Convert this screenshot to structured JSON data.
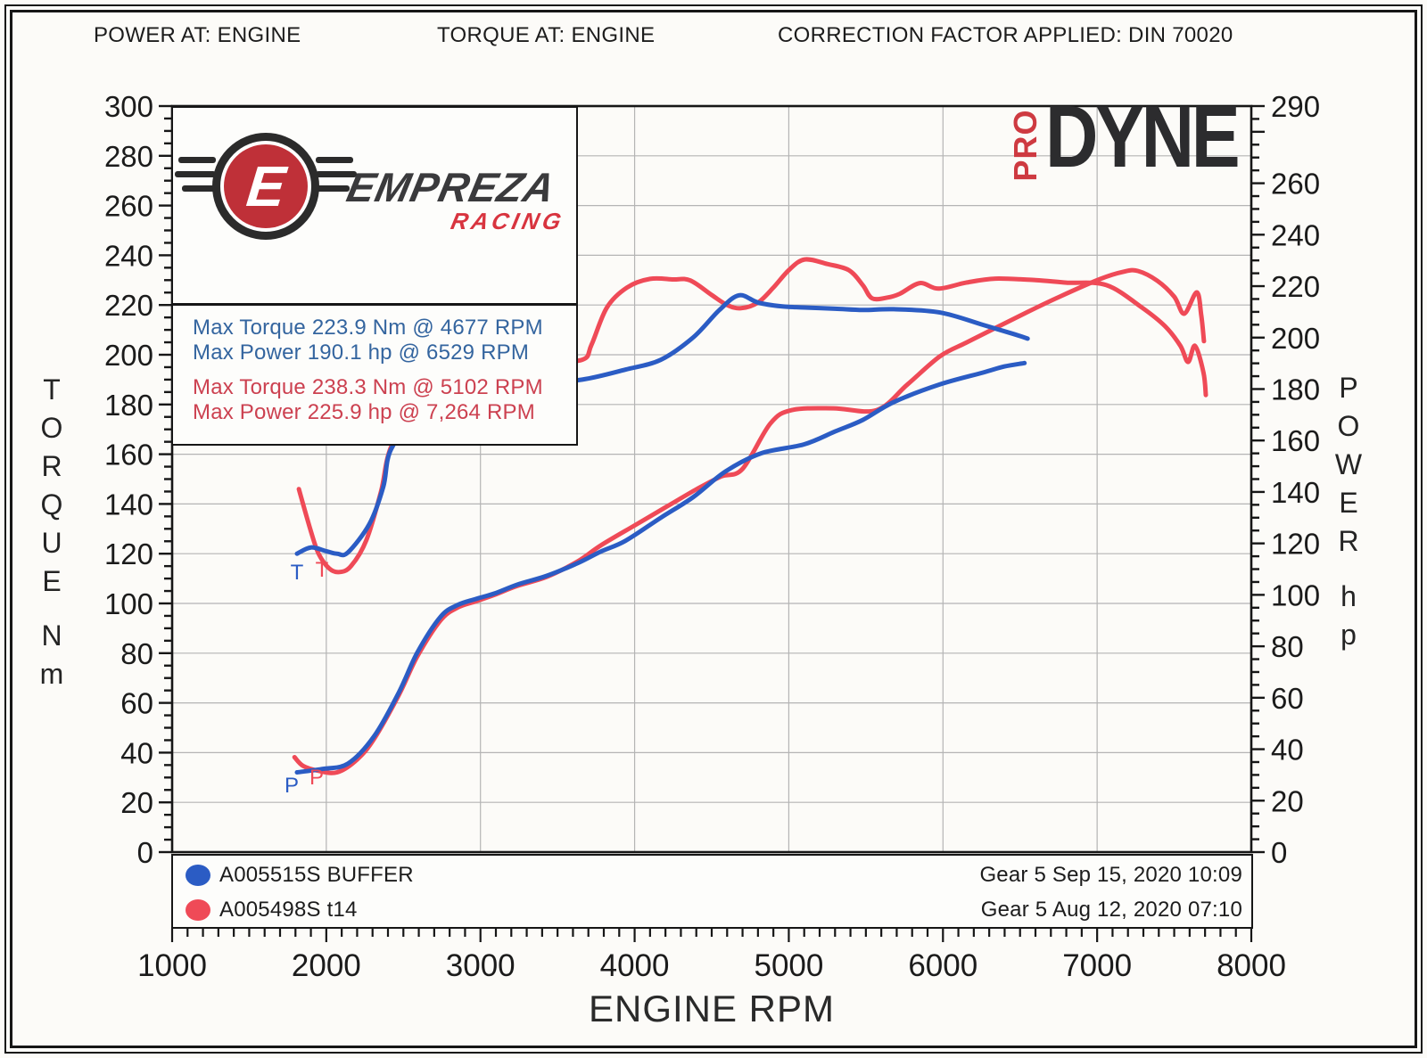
{
  "header": {
    "power_at": "POWER AT: ENGINE",
    "torque_at": "TORQUE AT: ENGINE",
    "correction": "CORRECTION FACTOR APPLIED: DIN 70020"
  },
  "watermark": {
    "pro": "PRO",
    "dyne": "DYNE"
  },
  "logo": {
    "emblem_letter": "E",
    "brand": "EMPREZA",
    "brand_sub": "RACING"
  },
  "stats": {
    "run1_max_torque": "Max Torque 223.9 Nm @ 4677 RPM",
    "run1_max_power": "Max Power 190.1 hp @ 6529 RPM",
    "run2_max_torque": "Max Torque 238.3 Nm @ 5102 RPM",
    "run2_max_power": "Max Power 225.9 hp @ 7,264 RPM"
  },
  "axes": {
    "left_title": "TORQUE",
    "left_unit": "Nm",
    "right_title": "POWER",
    "right_unit": "hp",
    "x_title": "ENGINE RPM"
  },
  "legend": {
    "rows": [
      {
        "color": "#2b5cc4",
        "label": "A005515S BUFFER",
        "right": "Gear 5 Sep 15, 2020 10:09"
      },
      {
        "color": "#ef4a57",
        "label": "A005498S t14",
        "right": "Gear 5 Aug 12, 2020 07:10"
      }
    ]
  },
  "colors": {
    "blue": "#2b5cc4",
    "red": "#ef4a57",
    "grid": "#b4b4b4",
    "axis": "#161616",
    "tick_text": "#1b1b1b"
  },
  "markers": [
    {
      "text": "T",
      "color": "#2b5cc4",
      "x": 333,
      "y": 650
    },
    {
      "text": "T",
      "color": "#ef4a57",
      "x": 361,
      "y": 647
    },
    {
      "text": "P",
      "color": "#2b5cc4",
      "x": 327,
      "y": 889
    },
    {
      "text": "P",
      "color": "#ef4a57",
      "x": 355,
      "y": 880
    }
  ],
  "chart_data": {
    "type": "line",
    "title": "Dyno run comparison - torque and power vs engine RPM",
    "x_axis": {
      "label": "ENGINE RPM",
      "min": 1000,
      "max": 8000,
      "major_tick": 1000,
      "minor_tick": 100,
      "tick_labels": [
        1000,
        2000,
        3000,
        4000,
        5000,
        6000,
        7000,
        8000
      ]
    },
    "y_left": {
      "label": "TORQUE",
      "unit": "Nm",
      "min": 0,
      "max": 300,
      "gridline_step": 20,
      "minor_tick": 5,
      "tick_labels": [
        300,
        280,
        260,
        240,
        220,
        200,
        180,
        160,
        140,
        120,
        100,
        80,
        60,
        40,
        20,
        0
      ]
    },
    "y_right": {
      "label": "POWER",
      "unit": "hp",
      "min": 0,
      "max": 290,
      "minor_tick": 5,
      "tick_labels": [
        290,
        260,
        240,
        220,
        200,
        180,
        160,
        140,
        120,
        100,
        80,
        60,
        40,
        20,
        0
      ]
    },
    "grid": true,
    "series": [
      {
        "name": "A005515S BUFFER torque",
        "run": "A005515S BUFFER",
        "axis": "left",
        "unit": "Nm",
        "color": "#2b5cc4",
        "max_label": "Max Torque 223.9 Nm @ 4677 RPM",
        "points": [
          [
            1810,
            120
          ],
          [
            1900,
            122.5
          ],
          [
            2000,
            121
          ],
          [
            2070,
            120
          ],
          [
            2140,
            120.5
          ],
          [
            2280,
            132
          ],
          [
            2370,
            147
          ],
          [
            2420,
            162
          ],
          [
            2600,
            176
          ],
          [
            2800,
            184
          ],
          [
            3000,
            187
          ],
          [
            3200,
            188
          ],
          [
            3400,
            189
          ],
          [
            3660,
            190
          ],
          [
            3940,
            194
          ],
          [
            4170,
            198
          ],
          [
            4380,
            207
          ],
          [
            4550,
            218
          ],
          [
            4677,
            223.9
          ],
          [
            4800,
            221
          ],
          [
            4950,
            219.5
          ],
          [
            5100,
            219
          ],
          [
            5300,
            218.5
          ],
          [
            5480,
            218
          ],
          [
            5680,
            218.3
          ],
          [
            5980,
            217
          ],
          [
            6260,
            212
          ],
          [
            6450,
            208.5
          ],
          [
            6549,
            206.5
          ]
        ]
      },
      {
        "name": "A005515S BUFFER power",
        "run": "A005515S BUFFER",
        "axis": "right",
        "unit": "hp",
        "color": "#2b5cc4",
        "max_label": "Max Power 190.1 hp @ 6529 RPM",
        "points": [
          [
            1810,
            31
          ],
          [
            1970,
            32.3
          ],
          [
            2140,
            34.4
          ],
          [
            2310,
            45
          ],
          [
            2470,
            62
          ],
          [
            2590,
            77.5
          ],
          [
            2740,
            91.4
          ],
          [
            2850,
            96
          ],
          [
            2970,
            98.4
          ],
          [
            3090,
            100.5
          ],
          [
            3240,
            104
          ],
          [
            3430,
            107.4
          ],
          [
            3630,
            112.3
          ],
          [
            3780,
            116.8
          ],
          [
            3940,
            121
          ],
          [
            4170,
            130
          ],
          [
            4380,
            138
          ],
          [
            4590,
            148
          ],
          [
            4820,
            155
          ],
          [
            5100,
            158.5
          ],
          [
            5300,
            163.5
          ],
          [
            5480,
            168
          ],
          [
            5680,
            174.9
          ],
          [
            5980,
            181.8
          ],
          [
            6260,
            186.4
          ],
          [
            6400,
            188.8
          ],
          [
            6529,
            190.1
          ]
        ]
      },
      {
        "name": "A005498S t14 torque",
        "run": "A005498S t14",
        "axis": "left",
        "unit": "Nm",
        "color": "#ef4a57",
        "max_label": "Max Torque 238.3 Nm @ 5102 RPM",
        "points": [
          [
            1822,
            146
          ],
          [
            1900,
            129
          ],
          [
            1950,
            120
          ],
          [
            2020,
            114
          ],
          [
            2085,
            112.6
          ],
          [
            2160,
            115
          ],
          [
            2260,
            125.5
          ],
          [
            2355,
            145
          ],
          [
            2420,
            163
          ],
          [
            2600,
            183
          ],
          [
            2800,
            193
          ],
          [
            3000,
            196
          ],
          [
            3200,
            196
          ],
          [
            3400,
            197
          ],
          [
            3660,
            198
          ],
          [
            3720,
            204
          ],
          [
            3820,
            219
          ],
          [
            3950,
            227
          ],
          [
            4100,
            230.5
          ],
          [
            4250,
            230.3
          ],
          [
            4360,
            229.9
          ],
          [
            4500,
            224
          ],
          [
            4600,
            220
          ],
          [
            4690,
            218.7
          ],
          [
            4800,
            221
          ],
          [
            4900,
            227
          ],
          [
            5000,
            234
          ],
          [
            5102,
            238.3
          ],
          [
            5250,
            236.5
          ],
          [
            5390,
            234
          ],
          [
            5480,
            228
          ],
          [
            5540,
            222.7
          ],
          [
            5640,
            223
          ],
          [
            5720,
            224.5
          ],
          [
            5850,
            228.8
          ],
          [
            5970,
            226.6
          ],
          [
            6150,
            229
          ],
          [
            6340,
            230.6
          ],
          [
            6600,
            230
          ],
          [
            6800,
            229
          ],
          [
            7060,
            228
          ],
          [
            7290,
            219
          ],
          [
            7440,
            211.5
          ],
          [
            7540,
            203.6
          ],
          [
            7590,
            197.1
          ],
          [
            7635,
            203.6
          ],
          [
            7690,
            192.8
          ],
          [
            7705,
            183.8
          ]
        ]
      },
      {
        "name": "A005498S t14 power",
        "run": "A005498S t14",
        "axis": "right",
        "unit": "hp",
        "color": "#ef4a57",
        "max_label": "Max Power 225.9 hp @ 7,264 RPM",
        "points": [
          [
            1794,
            36.9
          ],
          [
            1850,
            33.5
          ],
          [
            1950,
            31.6
          ],
          [
            2070,
            31
          ],
          [
            2200,
            36
          ],
          [
            2310,
            44
          ],
          [
            2470,
            61
          ],
          [
            2590,
            76
          ],
          [
            2740,
            90
          ],
          [
            2850,
            95
          ],
          [
            2970,
            97.5
          ],
          [
            3090,
            100
          ],
          [
            3240,
            103.5
          ],
          [
            3430,
            107
          ],
          [
            3630,
            113
          ],
          [
            3780,
            119.2
          ],
          [
            4000,
            127
          ],
          [
            4200,
            134
          ],
          [
            4400,
            141
          ],
          [
            4560,
            146
          ],
          [
            4700,
            149
          ],
          [
            4880,
            166.6
          ],
          [
            5020,
            171.8
          ],
          [
            5290,
            172.5
          ],
          [
            5570,
            171.8
          ],
          [
            5770,
            181.8
          ],
          [
            5980,
            192.7
          ],
          [
            6150,
            198
          ],
          [
            6330,
            203.4
          ],
          [
            6550,
            210
          ],
          [
            6760,
            216
          ],
          [
            7020,
            222.8
          ],
          [
            7170,
            225.6
          ],
          [
            7264,
            225.9
          ],
          [
            7390,
            222.1
          ],
          [
            7500,
            215.9
          ],
          [
            7565,
            209.3
          ],
          [
            7646,
            217.6
          ],
          [
            7675,
            208.9
          ],
          [
            7693,
            198.6
          ]
        ]
      }
    ]
  }
}
